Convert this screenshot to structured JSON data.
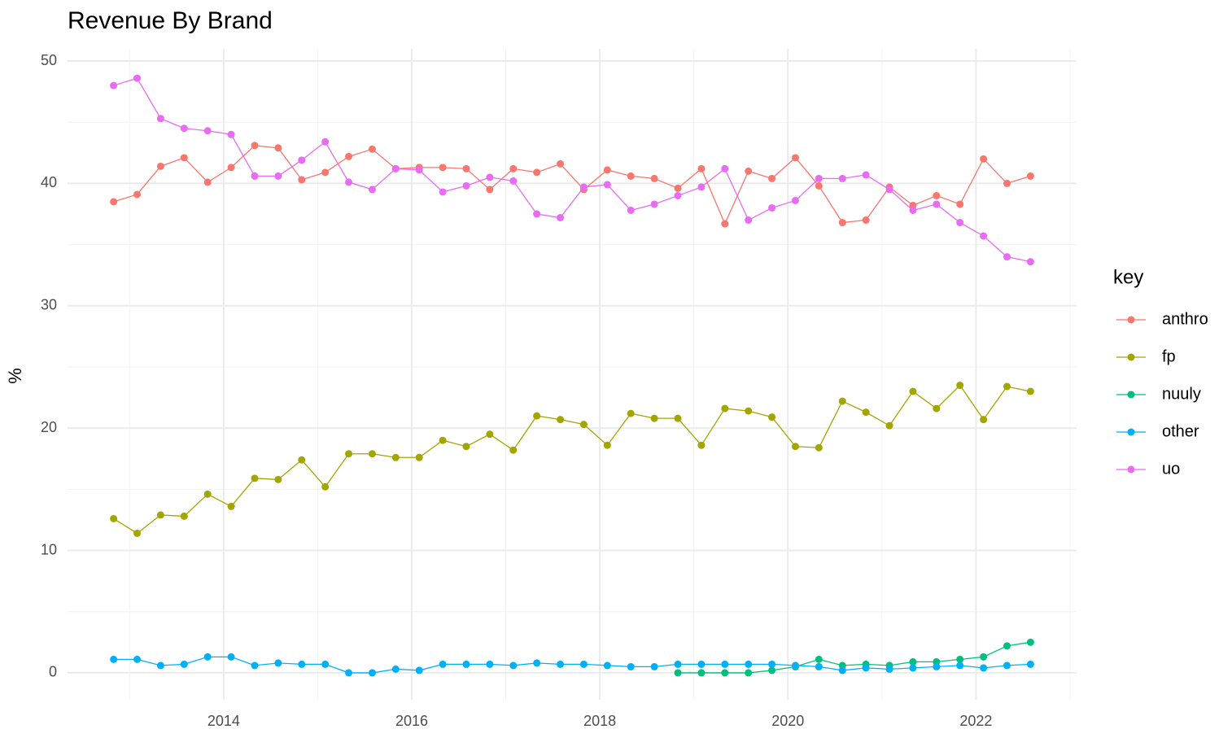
{
  "chart_data": {
    "type": "line",
    "title": "Revenue By Brand",
    "y_label": "%",
    "legend_title": "key",
    "legend": "right",
    "grid": true,
    "x": [
      2012.83,
      2013.08,
      2013.33,
      2013.58,
      2013.83,
      2014.08,
      2014.33,
      2014.58,
      2014.83,
      2015.08,
      2015.33,
      2015.58,
      2015.83,
      2016.08,
      2016.33,
      2016.58,
      2016.83,
      2017.08,
      2017.33,
      2017.58,
      2017.83,
      2018.08,
      2018.33,
      2018.58,
      2018.83,
      2019.08,
      2019.33,
      2019.58,
      2019.83,
      2020.08,
      2020.33,
      2020.58,
      2020.83,
      2021.08,
      2021.33,
      2021.58,
      2021.83,
      2022.08,
      2022.33,
      2022.58
    ],
    "xlim": [
      2012.34,
      2023.07
    ],
    "xticks": [
      2014,
      2016,
      2018,
      2020,
      2022
    ],
    "ylim": [
      -2.2,
      51.0
    ],
    "yticks": [
      0,
      10,
      20,
      30,
      40,
      50
    ],
    "series": [
      {
        "name": "anthro",
        "color": "#F8766D",
        "values": [
          38.5,
          39.1,
          41.4,
          42.1,
          40.1,
          41.3,
          43.1,
          42.9,
          40.3,
          40.9,
          42.2,
          42.8,
          41.2,
          41.3,
          41.3,
          41.2,
          39.5,
          41.2,
          40.9,
          41.6,
          39.5,
          41.1,
          40.6,
          40.4,
          39.6,
          41.2,
          36.7,
          41.0,
          40.4,
          42.1,
          39.8,
          36.8,
          37.0,
          39.7,
          38.2,
          39.0,
          38.3,
          42.0,
          40.0,
          40.6
        ]
      },
      {
        "name": "fp",
        "color": "#A3A500",
        "values": [
          12.6,
          11.4,
          12.9,
          12.8,
          14.6,
          13.6,
          15.9,
          15.8,
          17.4,
          15.2,
          17.9,
          17.9,
          17.6,
          17.6,
          19.0,
          18.5,
          19.5,
          18.2,
          21.0,
          20.7,
          20.3,
          18.6,
          21.2,
          20.8,
          20.8,
          18.6,
          21.6,
          21.4,
          20.9,
          18.5,
          18.4,
          22.2,
          21.3,
          20.2,
          23.0,
          21.6,
          23.5,
          20.7,
          23.4,
          23.0
        ]
      },
      {
        "name": "nuuly",
        "color": "#00BF7D",
        "values": [
          null,
          null,
          null,
          null,
          null,
          null,
          null,
          null,
          null,
          null,
          null,
          null,
          null,
          null,
          null,
          null,
          null,
          null,
          null,
          null,
          null,
          null,
          null,
          null,
          0.0,
          0.0,
          0.0,
          0.0,
          0.2,
          0.5,
          1.1,
          0.6,
          0.7,
          0.6,
          0.9,
          0.9,
          1.1,
          1.3,
          2.2,
          2.5
        ]
      },
      {
        "name": "other",
        "color": "#00B0F6",
        "values": [
          1.1,
          1.1,
          0.6,
          0.7,
          1.3,
          1.3,
          0.6,
          0.8,
          0.7,
          0.7,
          0.0,
          0.0,
          0.3,
          0.2,
          0.7,
          0.7,
          0.7,
          0.6,
          0.8,
          0.7,
          0.7,
          0.6,
          0.5,
          0.5,
          0.7,
          0.7,
          0.7,
          0.7,
          0.7,
          0.6,
          0.5,
          0.2,
          0.4,
          0.3,
          0.4,
          0.5,
          0.6,
          0.4,
          0.6,
          0.7
        ]
      },
      {
        "name": "uo",
        "color": "#E76BF3",
        "values": [
          48.0,
          48.6,
          45.3,
          44.5,
          44.3,
          44.0,
          40.6,
          40.6,
          41.9,
          43.4,
          40.1,
          39.5,
          41.2,
          41.1,
          39.3,
          39.8,
          40.5,
          40.2,
          37.5,
          37.2,
          39.7,
          39.9,
          37.8,
          38.3,
          39.0,
          39.7,
          41.2,
          37.0,
          38.0,
          38.6,
          40.4,
          40.4,
          40.7,
          39.5,
          37.8,
          38.3,
          36.8,
          35.7,
          34.0,
          33.6
        ]
      }
    ]
  }
}
